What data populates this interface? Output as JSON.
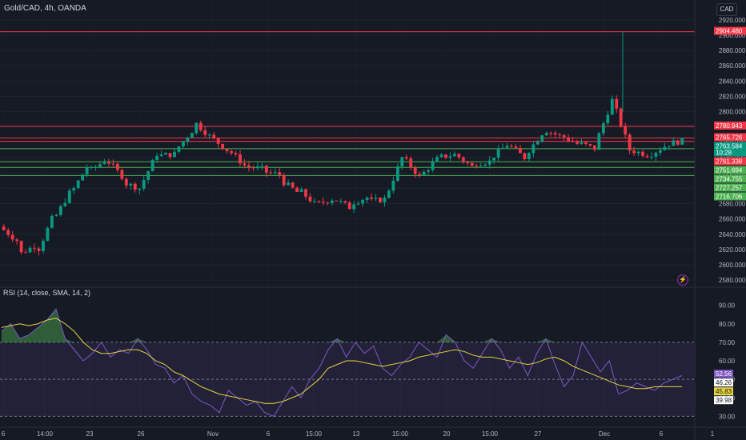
{
  "header": {
    "title": "Gold/CAD, 4h, OANDA",
    "currency_button": "CAD"
  },
  "rsi_panel": {
    "title": "RSI (14, close, SMA, 14, 2)"
  },
  "chart_data": {
    "type": "candlestick",
    "title": "Gold/CAD, 4h, OANDA",
    "price_axis": {
      "ticks": [
        "2920.000",
        "2900.000",
        "2880.000",
        "2860.000",
        "2840.000",
        "2820.000",
        "2800.000",
        "2780.000",
        "2760.000",
        "2740.000",
        "2720.000",
        "2700.000",
        "2680.000",
        "2660.000",
        "2640.000",
        "2620.000",
        "2600.000",
        "2580.000"
      ],
      "ylim": [
        2575,
        2925
      ]
    },
    "x_axis": {
      "tick_labels": [
        "6",
        "14:00",
        "23",
        "26",
        "Nov",
        "6",
        "15:00",
        "13",
        "15:00",
        "20",
        "15:00",
        "27",
        "Dec",
        "6",
        "1"
      ]
    },
    "horizontal_levels": [
      {
        "value": 2904.48,
        "label": "2904.480",
        "color": "#f23645"
      },
      {
        "value": 2780.943,
        "label": "2780.943",
        "color": "#f23645"
      },
      {
        "value": 2765.726,
        "label": "2765.726",
        "color": "#f23645"
      },
      {
        "value": 2761.338,
        "label": "2761.338",
        "color": "#f23645"
      },
      {
        "value": 2751.694,
        "label": "2751.694",
        "color": "#4caf50"
      },
      {
        "value": 2734.755,
        "label": "2734.755",
        "color": "#4caf50"
      },
      {
        "value": 2727.257,
        "label": "2727.257",
        "color": "#4caf50"
      },
      {
        "value": 2716.706,
        "label": "2716.706",
        "color": "#4caf50"
      }
    ],
    "current_price": {
      "value": 2763.584,
      "label": "2763.584",
      "countdown": "10:28",
      "color": "#089981"
    },
    "price_path": [
      [
        2650,
        2632
      ],
      [
        2612,
        2625
      ],
      [
        2608,
        2660
      ],
      [
        2655,
        2694
      ],
      [
        2690,
        2728
      ],
      [
        2720,
        2736
      ],
      [
        2740,
        2716
      ],
      [
        2708,
        2700
      ],
      [
        2700,
        2745
      ],
      [
        2742,
        2745
      ],
      [
        2748,
        2775
      ],
      [
        2790,
        2768
      ],
      [
        2768,
        2750
      ],
      [
        2752,
        2730
      ],
      [
        2728,
        2726
      ],
      [
        2722,
        2718
      ],
      [
        2712,
        2695
      ],
      [
        2700,
        2680
      ],
      [
        2678,
        2686
      ],
      [
        2688,
        2675
      ],
      [
        2680,
        2688
      ],
      [
        2682,
        2686
      ],
      [
        2685,
        2740
      ],
      [
        2742,
        2715
      ],
      [
        2715,
        2738
      ],
      [
        2740,
        2744
      ],
      [
        2745,
        2728
      ],
      [
        2732,
        2735
      ],
      [
        2738,
        2757
      ],
      [
        2758,
        2740
      ],
      [
        2742,
        2772
      ],
      [
        2778,
        2768
      ],
      [
        2770,
        2758
      ],
      [
        2760,
        2752
      ],
      [
        2755,
        2815
      ],
      [
        2817,
        2750
      ],
      [
        2750,
        2744
      ],
      [
        2742,
        2755
      ],
      [
        2757,
        2762
      ]
    ],
    "rsi": {
      "ticks": [
        "90.00",
        "80.00",
        "70.00",
        "60.00",
        "50.00",
        "40.00",
        "30.00"
      ],
      "ylim": [
        28,
        92
      ],
      "overbought": 70,
      "oversold": 30,
      "labels": {
        "rsi": "52.56",
        "sma": "45.83",
        "band_upper": "46.26",
        "band_lower": "39.98"
      },
      "rsi_path": [
        76,
        80,
        72,
        74,
        78,
        82,
        88,
        72,
        66,
        60,
        64,
        70,
        62,
        66,
        64,
        72,
        66,
        58,
        56,
        48,
        52,
        42,
        38,
        36,
        32,
        44,
        40,
        36,
        38,
        32,
        30,
        38,
        46,
        40,
        50,
        56,
        66,
        72,
        62,
        70,
        64,
        68,
        56,
        52,
        58,
        62,
        70,
        66,
        62,
        74,
        70,
        60,
        56,
        64,
        72,
        66,
        56,
        62,
        52,
        64,
        72,
        58,
        46,
        52,
        70,
        62,
        54,
        60,
        42,
        44,
        48,
        46,
        44,
        48,
        50,
        52
      ],
      "sma_path": [
        78,
        79,
        80,
        79,
        80,
        82,
        83,
        80,
        76,
        70,
        66,
        64,
        64,
        65,
        66,
        66,
        64,
        60,
        58,
        54,
        52,
        49,
        46,
        44,
        42,
        41,
        40,
        39,
        38,
        37,
        37,
        38,
        40,
        42,
        46,
        50,
        56,
        58,
        60,
        60,
        59,
        58,
        57,
        58,
        59,
        60,
        62,
        63,
        64,
        65,
        66,
        65,
        63,
        62,
        62,
        61,
        60,
        59,
        58,
        59,
        61,
        62,
        60,
        57,
        55,
        53,
        51,
        49,
        47,
        46,
        45,
        45,
        46,
        46,
        46,
        46
      ]
    }
  }
}
